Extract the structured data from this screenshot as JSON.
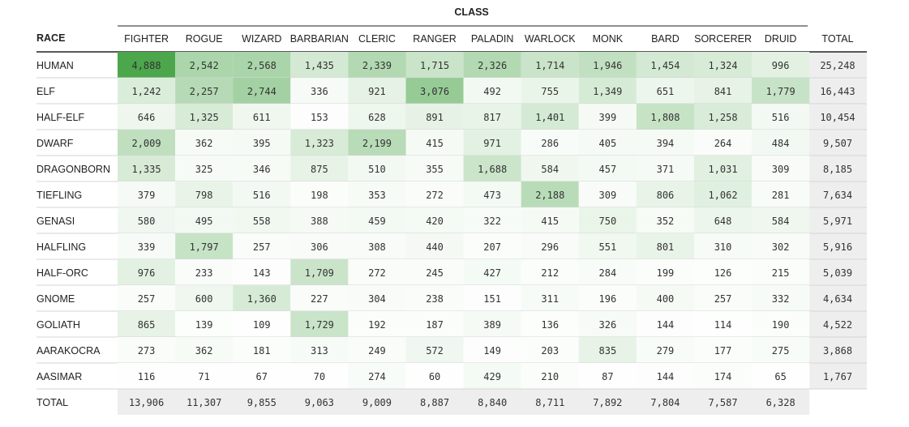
{
  "chart_data": {
    "type": "heatmap",
    "column_group_label": "CLASS",
    "row_header_label": "RACE",
    "total_label": "TOTAL",
    "colors": {
      "low": "#ffffff",
      "high": "#4ca64c",
      "total_bg": "#eeeeee",
      "rule": "#222222",
      "row_rule": "#d6d6d6"
    },
    "columns": [
      "FIGHTER",
      "ROGUE",
      "WIZARD",
      "BARBARIAN",
      "CLERIC",
      "RANGER",
      "PALADIN",
      "WARLOCK",
      "MONK",
      "BARD",
      "SORCERER",
      "DRUID"
    ],
    "rows": [
      "HUMAN",
      "ELF",
      "HALF-ELF",
      "DWARF",
      "DRAGONBORN",
      "TIEFLING",
      "GENASI",
      "HALFLING",
      "HALF-ORC",
      "GNOME",
      "GOLIATH",
      "AARAKOCRA",
      "AASIMAR"
    ],
    "values": [
      [
        4888,
        2542,
        2568,
        1435,
        2339,
        1715,
        2326,
        1714,
        1946,
        1454,
        1324,
        996
      ],
      [
        1242,
        2257,
        2744,
        336,
        921,
        3076,
        492,
        755,
        1349,
        651,
        841,
        1779
      ],
      [
        646,
        1325,
        611,
        153,
        628,
        891,
        817,
        1401,
        399,
        1808,
        1258,
        516
      ],
      [
        2009,
        362,
        395,
        1323,
        2199,
        415,
        971,
        286,
        405,
        394,
        264,
        484
      ],
      [
        1335,
        325,
        346,
        875,
        510,
        355,
        1688,
        584,
        457,
        371,
        1031,
        309
      ],
      [
        379,
        798,
        516,
        198,
        353,
        272,
        473,
        2188,
        309,
        806,
        1062,
        281
      ],
      [
        580,
        495,
        558,
        388,
        459,
        420,
        322,
        415,
        750,
        352,
        648,
        584
      ],
      [
        339,
        1797,
        257,
        306,
        308,
        440,
        207,
        296,
        551,
        801,
        310,
        302
      ],
      [
        976,
        233,
        143,
        1709,
        272,
        245,
        427,
        212,
        284,
        199,
        126,
        215
      ],
      [
        257,
        600,
        1360,
        227,
        304,
        238,
        151,
        311,
        196,
        400,
        257,
        332
      ],
      [
        865,
        139,
        109,
        1729,
        192,
        187,
        389,
        136,
        326,
        144,
        114,
        190
      ],
      [
        273,
        362,
        181,
        313,
        249,
        572,
        149,
        203,
        835,
        279,
        177,
        275
      ],
      [
        116,
        71,
        67,
        70,
        274,
        60,
        429,
        210,
        87,
        144,
        174,
        65
      ]
    ],
    "row_totals": [
      25248,
      16443,
      10454,
      9507,
      8185,
      7634,
      5971,
      5916,
      5039,
      4634,
      4522,
      3868,
      1767
    ],
    "column_totals": [
      13906,
      11307,
      9855,
      9063,
      9009,
      8887,
      8840,
      8711,
      7892,
      7804,
      7587,
      6328
    ]
  }
}
